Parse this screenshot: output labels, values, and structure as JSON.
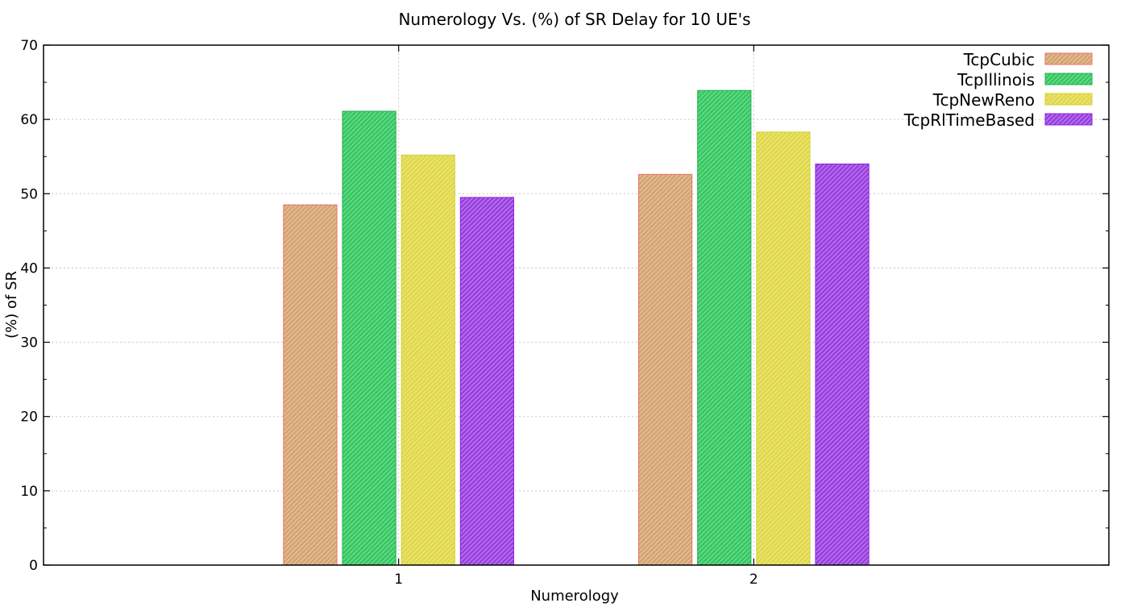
{
  "chart_data": {
    "type": "bar",
    "title": "Numerology Vs. (%) of SR Delay for 10 UE's",
    "xlabel": "Numerology",
    "ylabel": "(%) of SR",
    "ylim": [
      0,
      70
    ],
    "y_ticks": [
      0,
      10,
      20,
      30,
      40,
      50,
      60,
      70
    ],
    "categories": [
      "1",
      "2"
    ],
    "grid": true,
    "legend_position": "top-right",
    "series": [
      {
        "name": "TcpCubic",
        "values": [
          48.5,
          52.6
        ],
        "fill": "#d4a574",
        "stroke": "#f07060",
        "stripe": "#f4d8b8"
      },
      {
        "name": "TcpIllinois",
        "values": [
          61.1,
          63.9
        ],
        "fill": "#36c862",
        "stroke": "#20b050",
        "stripe": "#a6e8b8"
      },
      {
        "name": "TcpNewReno",
        "values": [
          55.2,
          58.3
        ],
        "fill": "#e0d84a",
        "stroke": "#d6d030",
        "stripe": "#f6f2a8"
      },
      {
        "name": "TcpRlTimeBased",
        "values": [
          49.5,
          54.0
        ],
        "fill": "#9a40e0",
        "stroke": "#9020e0",
        "stripe": "#d2b0f2"
      }
    ]
  }
}
